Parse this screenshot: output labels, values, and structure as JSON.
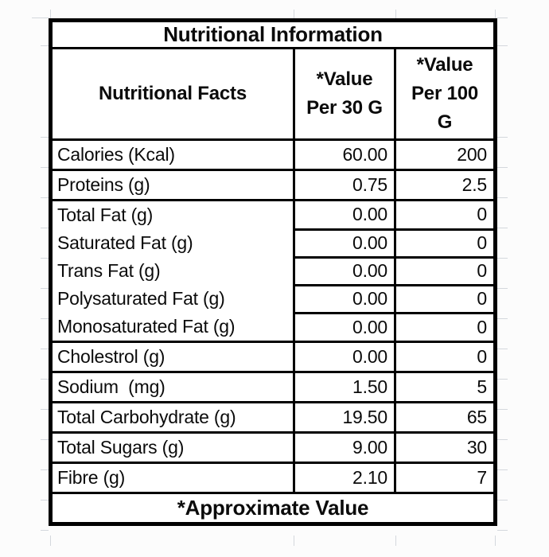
{
  "sheet": {
    "background_color": "#fcfcfc",
    "cell_background_color": "#ffffff",
    "gridline_color": "#d4d8dd",
    "border_color": "#000000",
    "text_color": "#0b0b0b"
  },
  "table": {
    "title": "Nutritional Information",
    "header": {
      "facts": "Nutritional Facts",
      "per_30g": "*Value\nPer 30 G",
      "per_100g": "*Value\nPer 100\nG"
    },
    "rows": [
      {
        "label": "Calories (Kcal)",
        "per_30g": "60.00",
        "per_100g": "200",
        "group": "normal"
      },
      {
        "label": "Proteins (g)",
        "per_30g": "0.75",
        "per_100g": "2.5",
        "group": "normal"
      },
      {
        "label": "Total Fat (g)",
        "per_30g": "0.00",
        "per_100g": "0",
        "group": "fat-start"
      },
      {
        "label": "Saturated Fat (g)",
        "per_30g": "0.00",
        "per_100g": "0",
        "group": "fat-sub"
      },
      {
        "label": "Trans Fat (g)",
        "per_30g": "0.00",
        "per_100g": "0",
        "group": "fat-sub"
      },
      {
        "label": "Polysaturated Fat (g)",
        "per_30g": "0.00",
        "per_100g": "0",
        "group": "fat-sub"
      },
      {
        "label": "Monosaturated Fat (g)",
        "per_30g": "0.00",
        "per_100g": "0",
        "group": "fat-sub"
      },
      {
        "label": "Cholestrol (g)",
        "per_30g": "0.00",
        "per_100g": "0",
        "group": "normal"
      },
      {
        "label": "Sodium  (mg)",
        "per_30g": "1.50",
        "per_100g": "5",
        "group": "normal"
      },
      {
        "label": "Total Carbohydrate (g)",
        "per_30g": "19.50",
        "per_100g": "65",
        "group": "normal"
      },
      {
        "label": "Total Sugars (g)",
        "per_30g": "9.00",
        "per_100g": "30",
        "group": "normal"
      },
      {
        "label": "Fibre (g)",
        "per_30g": "2.10",
        "per_100g": "7",
        "group": "normal"
      }
    ],
    "footnote": "*Approximate Value"
  }
}
